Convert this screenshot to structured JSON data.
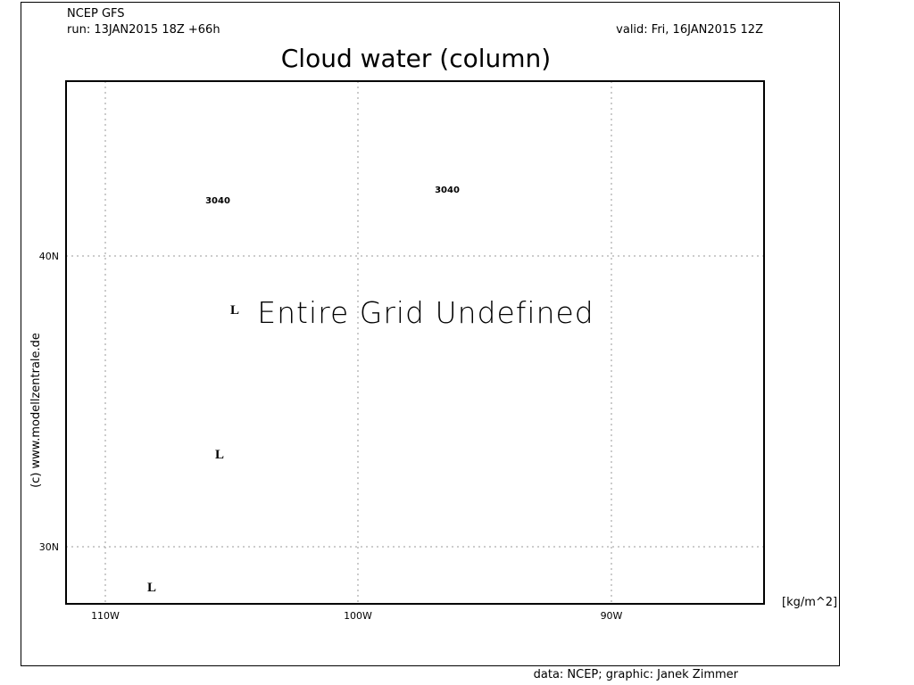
{
  "header": {
    "source": "NCEP GFS",
    "run": "run: 13JAN2015 18Z +66h",
    "valid": "valid: Fri, 16JAN2015 12Z",
    "title": "Cloud water (column)"
  },
  "map": {
    "message": "Entire Grid Undefined",
    "x_labels": [
      "110W",
      "100W",
      "90W"
    ],
    "y_labels": [
      "40N",
      "30N"
    ],
    "contour_labels": [
      "3040",
      "3040"
    ],
    "pressure_centers": [
      "L",
      "L",
      "L"
    ],
    "unit": "[kg/m^2]"
  },
  "footer": {
    "copyright": "(c) www.modellzentrale.de",
    "credits": "data: NCEP; graphic: Janek Zimmer"
  }
}
